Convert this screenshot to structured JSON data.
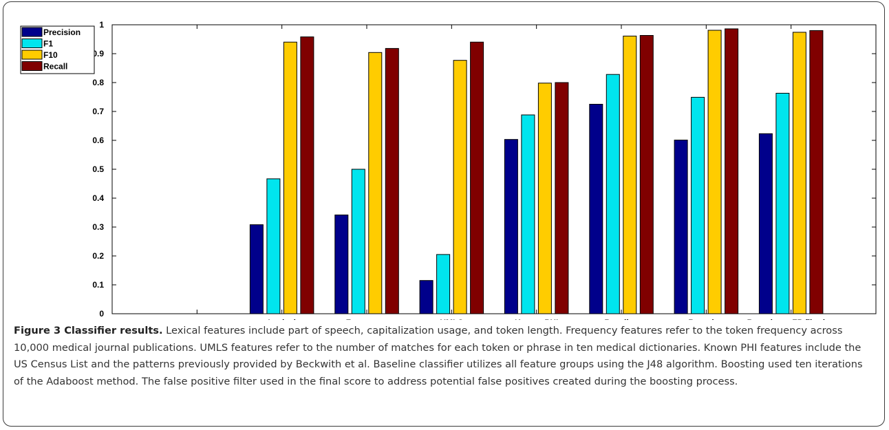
{
  "chart_data": {
    "type": "bar",
    "categories": [
      "Lexical",
      "Frequency",
      "UMLS",
      "Known PHI",
      "Baseline",
      "Boosting",
      "Boosting + FP filtering"
    ],
    "series": [
      {
        "name": "Precision",
        "color": "#00008b",
        "values": [
          0.308,
          0.342,
          0.115,
          0.603,
          0.725,
          0.601,
          0.623
        ]
      },
      {
        "name": "F1",
        "color": "#00e5ee",
        "values": [
          0.467,
          0.5,
          0.205,
          0.688,
          0.828,
          0.749,
          0.763
        ]
      },
      {
        "name": "F10",
        "color": "#ffcc00",
        "values": [
          0.94,
          0.904,
          0.877,
          0.798,
          0.961,
          0.981,
          0.974
        ]
      },
      {
        "name": "Recall",
        "color": "#800000",
        "values": [
          0.958,
          0.918,
          0.94,
          0.8,
          0.963,
          0.986,
          0.98
        ]
      }
    ],
    "ylim": [
      0,
      1
    ],
    "yticks": [
      "0",
      "0.1",
      "0.2",
      "0.3",
      "0.4",
      "0.5",
      "0.6",
      "0.7",
      "0.8",
      "0.9",
      "1"
    ],
    "legend_position": "top-left",
    "grid": false
  },
  "caption": {
    "title": "Figure 3 Classifier results.",
    "text": "Lexical features include part of speech, capitalization usage, and token length. Frequency features refer to the token frequency across 10,000 medical journal publications. UMLS features refer to the number of matches for each token or phrase in ten medical dictionaries. Known PHI features include the US Census List and the patterns previously provided by Beckwith et al. Baseline classifier utilizes all feature groups using the J48 algorithm. Boosting used ten iterations of the Adaboost method. The false positive filter used in the final score to address potential false positives created during the boosting process."
  }
}
